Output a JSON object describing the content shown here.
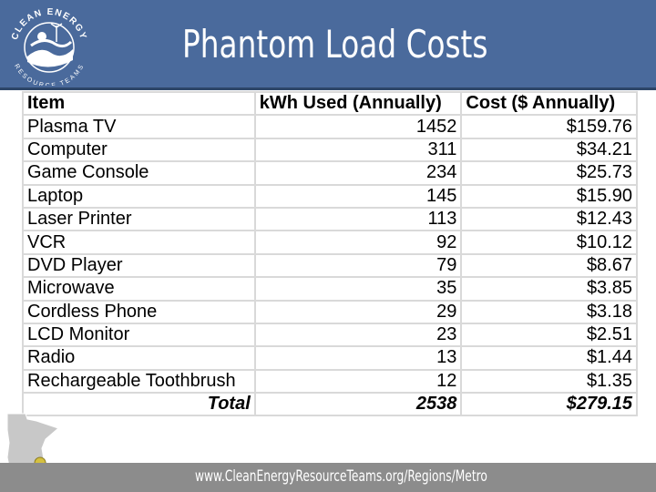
{
  "slide": {
    "title": "Phantom Load Costs",
    "footer_url": "www.CleanEnergyResourceTeams.org/Regions/Metro"
  },
  "logo": {
    "top_text": "CLEAN ENERGY",
    "bottom_text": "RESOURCE TEAMS"
  },
  "table": {
    "headers": [
      "Item",
      "kWh Used (Annually)",
      "Cost ($ Annually)"
    ],
    "rows": [
      {
        "item": "Plasma TV",
        "kwh": "1452",
        "cost": "$159.76"
      },
      {
        "item": "Computer",
        "kwh": "311",
        "cost": "$34.21"
      },
      {
        "item": "Game Console",
        "kwh": "234",
        "cost": "$25.73"
      },
      {
        "item": "Laptop",
        "kwh": "145",
        "cost": "$15.90"
      },
      {
        "item": "Laser Printer",
        "kwh": "113",
        "cost": "$12.43"
      },
      {
        "item": "VCR",
        "kwh": "92",
        "cost": "$10.12"
      },
      {
        "item": "DVD Player",
        "kwh": "79",
        "cost": "$8.67"
      },
      {
        "item": "Microwave",
        "kwh": "35",
        "cost": "$3.85"
      },
      {
        "item": "Cordless Phone",
        "kwh": "29",
        "cost": "$3.18"
      },
      {
        "item": "LCD Monitor",
        "kwh": "23",
        "cost": "$2.51"
      },
      {
        "item": "Radio",
        "kwh": "13",
        "cost": "$1.44"
      },
      {
        "item": "Rechargeable Toothbrush",
        "kwh": "12",
        "cost": "$1.35"
      }
    ],
    "total": {
      "label": "Total",
      "kwh": "2538",
      "cost": "$279.15"
    }
  },
  "colors": {
    "header_bg": "#4a6a9c",
    "footer_bg": "#8c8c8c",
    "grid": "#d9d9d9"
  }
}
